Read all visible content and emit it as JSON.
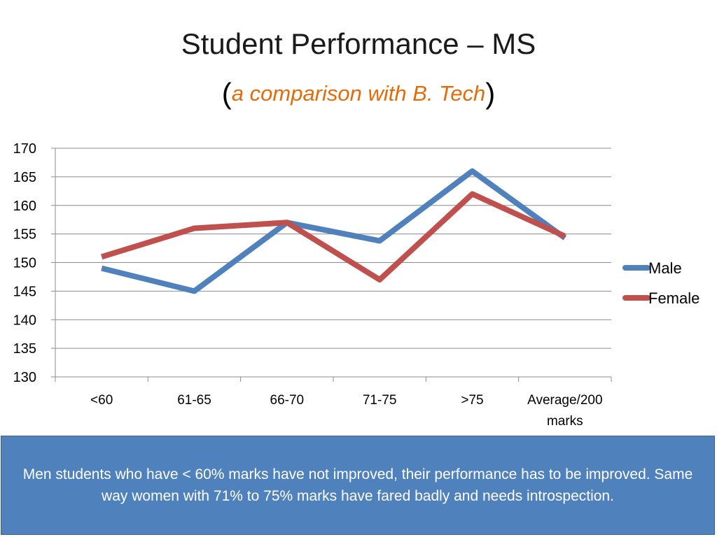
{
  "slide": {
    "title": "Student Performance – MS",
    "subtitle_open": "(",
    "subtitle_text": "a comparison with B. Tech",
    "subtitle_close": ")",
    "note": "Men students who have < 60% marks have not improved, their performance has to be improved. Same way women with 71% to 75% marks have fared badly and needs introspection."
  },
  "colors": {
    "male": "#4f81bd",
    "female": "#c0504d",
    "grid": "#8c8c8c",
    "note_bg": "#4f81bd",
    "accent_subtitle": "#e36c0a"
  },
  "chart_data": {
    "type": "line",
    "categories": [
      "<60",
      "61-65",
      "66-70",
      "71-75",
      ">75",
      "Average/200 marks"
    ],
    "series": [
      {
        "name": "Male",
        "values": [
          149,
          145,
          157,
          153.8,
          166,
          154.3
        ]
      },
      {
        "name": "Female",
        "values": [
          151,
          156,
          157,
          147,
          162,
          154.6
        ]
      }
    ],
    "ylim": [
      130,
      170
    ],
    "yticks": [
      170,
      165,
      160,
      155,
      150,
      145,
      140,
      135,
      130
    ],
    "grid": true,
    "legend": "right"
  }
}
